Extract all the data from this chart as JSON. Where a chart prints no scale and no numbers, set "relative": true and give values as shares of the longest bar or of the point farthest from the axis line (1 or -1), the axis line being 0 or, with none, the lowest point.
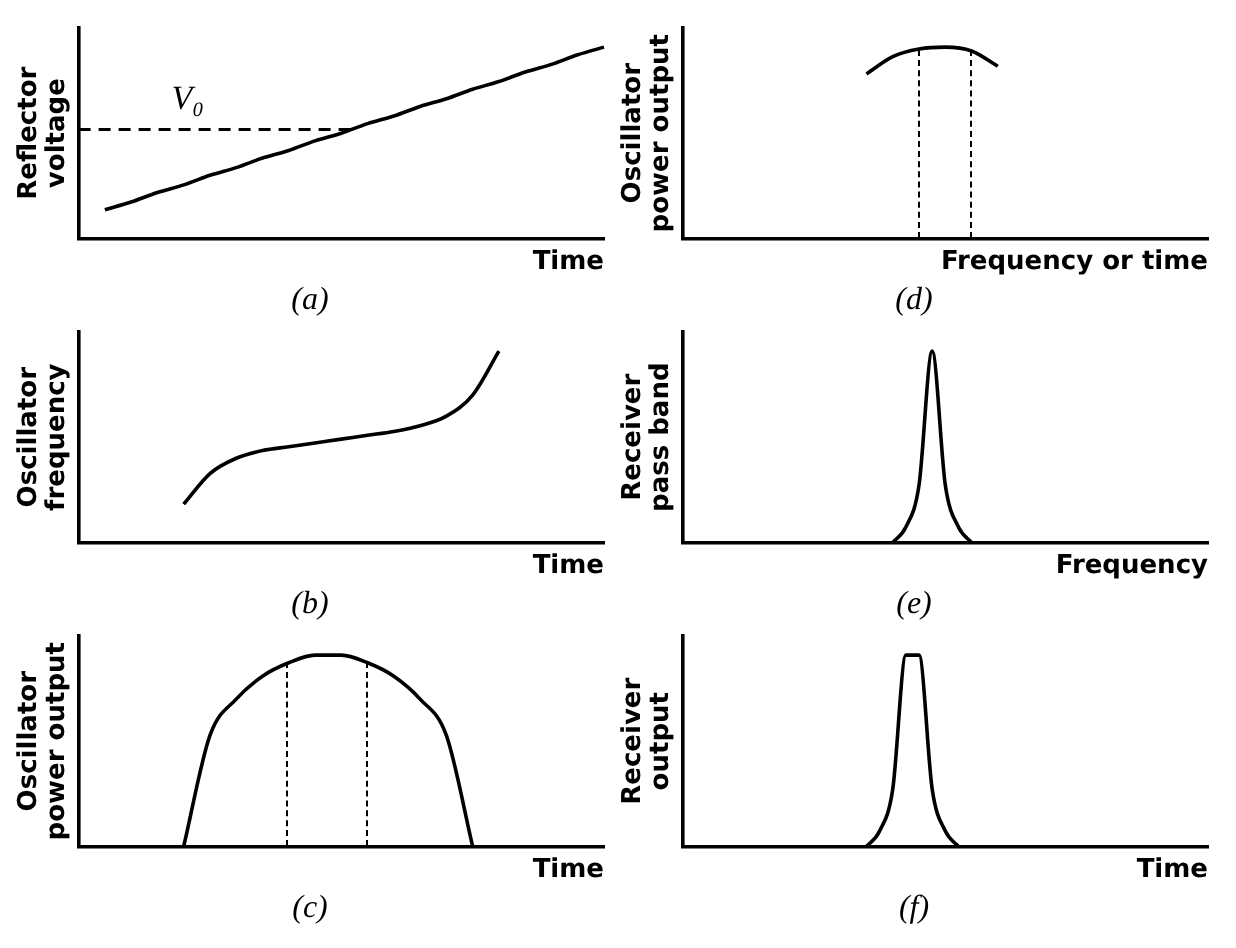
{
  "chart_data": [
    {
      "type": "line",
      "title": "(a)",
      "xlabel": "Time",
      "ylabel": "Reflector voltage",
      "relative": true,
      "tick_labels": false,
      "marker": "none",
      "line_style": "solid",
      "categories": [
        null,
        null,
        null,
        null,
        null,
        null,
        null,
        null,
        null,
        null,
        null,
        null,
        null,
        null,
        null,
        null,
        null,
        null,
        null,
        null,
        null
      ],
      "series": [
        {
          "color": "#000000",
          "values": [
            null,
            0.15,
            0.19,
            0.24,
            0.28,
            0.33,
            0.37,
            0.42,
            0.46,
            0.51,
            0.55,
            0.6,
            0.64,
            0.69,
            0.73,
            0.78,
            0.82,
            0.87,
            0.91,
            0.96,
            1.0
          ]
        }
      ],
      "ref_lines": [
        {
          "axis": "y",
          "value": 0.57,
          "label": "V₀",
          "color": "#000000",
          "line_style": "dashed"
        }
      ]
    },
    {
      "type": "line",
      "title": "(d)",
      "xlabel": "Frequency or time",
      "ylabel": "Oscillator power output",
      "relative": true,
      "tick_labels": false,
      "marker": "none",
      "line_style": "solid",
      "categories": [
        null,
        null,
        null,
        null,
        null,
        null,
        null,
        null,
        null,
        null,
        null,
        null,
        null,
        null,
        null,
        null,
        null,
        null,
        null,
        null,
        null
      ],
      "series": [
        {
          "color": "#000000",
          "values": [
            null,
            null,
            null,
            null,
            null,
            null,
            null,
            0.86,
            0.95,
            0.99,
            1.0,
            0.98,
            0.9,
            null,
            null,
            null,
            null,
            null,
            null,
            null,
            null
          ]
        }
      ]
    },
    {
      "type": "line",
      "title": "(b)",
      "xlabel": "Time",
      "ylabel": "Oscillator frequency",
      "relative": true,
      "tick_labels": false,
      "marker": "none",
      "line_style": "solid",
      "categories": [
        null,
        null,
        null,
        null,
        null,
        null,
        null,
        null,
        null,
        null,
        null,
        null,
        null,
        null,
        null,
        null,
        null,
        null,
        null,
        null,
        null
      ],
      "series": [
        {
          "color": "#000000",
          "values": [
            null,
            null,
            null,
            null,
            0.2,
            0.36,
            0.44,
            0.48,
            0.5,
            0.52,
            0.54,
            0.56,
            0.58,
            0.61,
            0.66,
            0.77,
            1.0,
            null,
            null,
            null,
            null
          ]
        }
      ]
    },
    {
      "type": "line",
      "title": "(e)",
      "xlabel": "Frequency",
      "ylabel": "Receiver pass band",
      "relative": true,
      "tick_labels": false,
      "marker": "none",
      "line_style": "solid",
      "categories": [
        null,
        null,
        null,
        null,
        null,
        null,
        null,
        null,
        null,
        null,
        null,
        null,
        null,
        null,
        null,
        null,
        null,
        null,
        null,
        null,
        null,
        null,
        null,
        null,
        null,
        null,
        null,
        null,
        null,
        null,
        null,
        null,
        null,
        null,
        null,
        null,
        null,
        null,
        null,
        null,
        null
      ],
      "series": [
        {
          "color": "#000000",
          "values": [
            null,
            null,
            null,
            null,
            null,
            null,
            null,
            null,
            null,
            null,
            null,
            null,
            null,
            null,
            null,
            null,
            0,
            0.08,
            0.3,
            1.0,
            0.3,
            0.08,
            0,
            null,
            null,
            null,
            null,
            null,
            null,
            null,
            null,
            null,
            null,
            null,
            null,
            null,
            null,
            null,
            null,
            null,
            null
          ]
        }
      ]
    },
    {
      "type": "line",
      "title": "(c)",
      "xlabel": "Time",
      "ylabel": "Oscillator power output",
      "relative": true,
      "tick_labels": false,
      "marker": "none",
      "line_style": "solid",
      "categories": [
        null,
        null,
        null,
        null,
        null,
        null,
        null,
        null,
        null,
        null,
        null,
        null,
        null,
        null,
        null,
        null,
        null,
        null,
        null,
        null,
        null
      ],
      "series": [
        {
          "color": "#000000",
          "values": [
            null,
            null,
            null,
            null,
            0,
            0.58,
            0.77,
            0.89,
            0.96,
            1.0,
            1.0,
            0.96,
            0.89,
            0.77,
            0.58,
            0,
            null,
            null,
            null,
            null,
            null
          ]
        }
      ]
    },
    {
      "type": "line",
      "title": "(f)",
      "xlabel": "Time",
      "ylabel": "Receiver output",
      "relative": true,
      "tick_labels": false,
      "marker": "none",
      "line_style": "solid",
      "categories": [
        null,
        null,
        null,
        null,
        null,
        null,
        null,
        null,
        null,
        null,
        null,
        null,
        null,
        null,
        null,
        null,
        null,
        null,
        null,
        null,
        null,
        null,
        null,
        null,
        null,
        null,
        null,
        null,
        null,
        null,
        null,
        null,
        null,
        null,
        null,
        null,
        null,
        null,
        null,
        null,
        null
      ],
      "series": [
        {
          "color": "#000000",
          "values": [
            null,
            null,
            null,
            null,
            null,
            null,
            null,
            null,
            null,
            null,
            null,
            null,
            null,
            null,
            0,
            0.08,
            0.3,
            1.0,
            1.0,
            0.3,
            0.08,
            0,
            null,
            null,
            null,
            null,
            null,
            null,
            null,
            null,
            null,
            null,
            null,
            null,
            null,
            null,
            null,
            null,
            null,
            null,
            null
          ]
        }
      ]
    }
  ]
}
